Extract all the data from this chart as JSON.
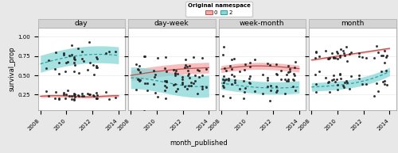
{
  "panels": [
    "day",
    "day-week",
    "week-month",
    "month"
  ],
  "xlabel": "month_published",
  "ylabel": "survival_prop",
  "legend_title": "Original namespace",
  "legend_labels": [
    "0",
    "2"
  ],
  "color_0": "#f4a9a8",
  "color_2": "#88d8d8",
  "line_color_0": "#c0504d",
  "line_color_2": "#2c9fa3",
  "dot_color": "#222222",
  "background_fig": "#e8e8e8",
  "background_plot": "#ffffff",
  "title_strip_color": "#d4d4d4",
  "ylim": [
    0.05,
    1.12
  ],
  "yticks": [
    0.25,
    0.5,
    0.75,
    1.0
  ],
  "ytick_labels": [
    "0.25",
    "0.50",
    "0.75",
    "1.00"
  ],
  "title_fontsize": 6.5,
  "label_fontsize": 6,
  "tick_fontsize": 5
}
